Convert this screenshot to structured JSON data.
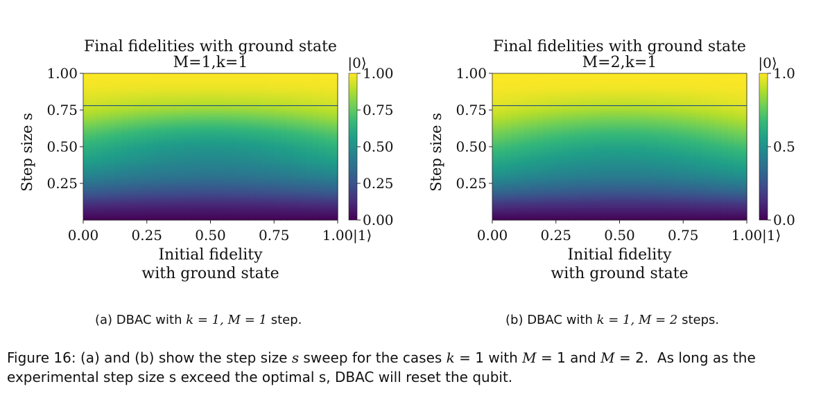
{
  "chart_data": [
    {
      "type": "heatmap",
      "title": "Final fidelities with ground state",
      "subtitle": "M=1,k=1",
      "xlabel": "Initial fidelity\nwith ground state",
      "ylabel": "Step size s",
      "xlim": [
        0.0,
        1.0
      ],
      "ylim": [
        0.0,
        1.0
      ],
      "xticks": [
        "0.00",
        "0.25",
        "0.50",
        "0.75",
        "1.00"
      ],
      "yticks": [
        "1.00",
        "0.75",
        "0.50",
        "0.25"
      ],
      "x_end_label": "|1⟩",
      "colorbar": {
        "top_label": "|0⟩",
        "range": [
          0.0,
          1.0
        ],
        "ticks": [
          "1.00",
          "0.75",
          "0.50",
          "0.25",
          "0.00"
        ],
        "colormap": "viridis"
      },
      "optimal_s_line": 0.78,
      "fidelity_profile": {
        "s": [
          0.0,
          0.1,
          0.2,
          0.3,
          0.4,
          0.5,
          0.6,
          0.7,
          0.78,
          0.9,
          1.0
        ],
        "fidelity_at_x0": [
          0.0,
          0.12,
          0.3,
          0.45,
          0.56,
          0.64,
          0.74,
          0.86,
          0.93,
          0.98,
          1.0
        ],
        "fidelity_at_x05": [
          0.0,
          0.1,
          0.25,
          0.38,
          0.46,
          0.52,
          0.62,
          0.76,
          0.88,
          0.97,
          1.0
        ]
      },
      "caption": "(a) DBAC with"
    },
    {
      "type": "heatmap",
      "title": "Final fidelities with ground state",
      "subtitle": "M=2,k=1",
      "xlabel": "Initial fidelity\nwith ground state",
      "ylabel": "Step size s",
      "xlim": [
        0.0,
        1.0
      ],
      "ylim": [
        0.0,
        1.0
      ],
      "xticks": [
        "0.00",
        "0.25",
        "0.50",
        "0.75",
        "1.00"
      ],
      "yticks": [
        "1.00",
        "0.75",
        "0.50",
        "0.25"
      ],
      "x_end_label": "|1⟩",
      "colorbar": {
        "top_label": "|0⟩",
        "range": [
          0.0,
          1.0
        ],
        "ticks": [
          "1.0",
          "0.5",
          "0.0"
        ],
        "colormap": "viridis"
      },
      "optimal_s_line": 0.78,
      "fidelity_profile": {
        "s": [
          0.0,
          0.1,
          0.2,
          0.3,
          0.4,
          0.5,
          0.6,
          0.7,
          0.78,
          0.9,
          1.0
        ],
        "fidelity_at_x0": [
          0.0,
          0.14,
          0.34,
          0.5,
          0.6,
          0.7,
          0.8,
          0.9,
          0.96,
          0.99,
          1.0
        ],
        "fidelity_at_x05": [
          0.0,
          0.12,
          0.28,
          0.42,
          0.5,
          0.58,
          0.68,
          0.8,
          0.9,
          0.98,
          1.0
        ]
      },
      "caption": "(b) DBAC with"
    }
  ],
  "subcaptions": [
    {
      "prefix": "(a) DBAC with",
      "math": "k = 1, M = 1",
      "suffix": "step."
    },
    {
      "prefix": "(b) DBAC with",
      "math": "k = 1, M = 2",
      "suffix": "steps."
    }
  ],
  "figure_caption": {
    "line1_a": "Figure 16: (a) and (b) show the step size ",
    "line1_s": "s",
    "line1_b": " sweep for the cases ",
    "line1_k": "k",
    "line1_c": " = 1 with ",
    "line1_M1": "M",
    "line1_d": " = 1 and ",
    "line1_M2": "M",
    "line1_e": " = 2.  As long as the",
    "line2": "experimental step size s exceed the optimal s, DBAC will reset the qubit."
  },
  "colors": {
    "viridis": [
      "#440154",
      "#482878",
      "#3e4a89",
      "#31688e",
      "#26828e",
      "#1f9e89",
      "#35b779",
      "#6ece58",
      "#b5de2b",
      "#fde725"
    ],
    "line": "#2a5a7a"
  }
}
